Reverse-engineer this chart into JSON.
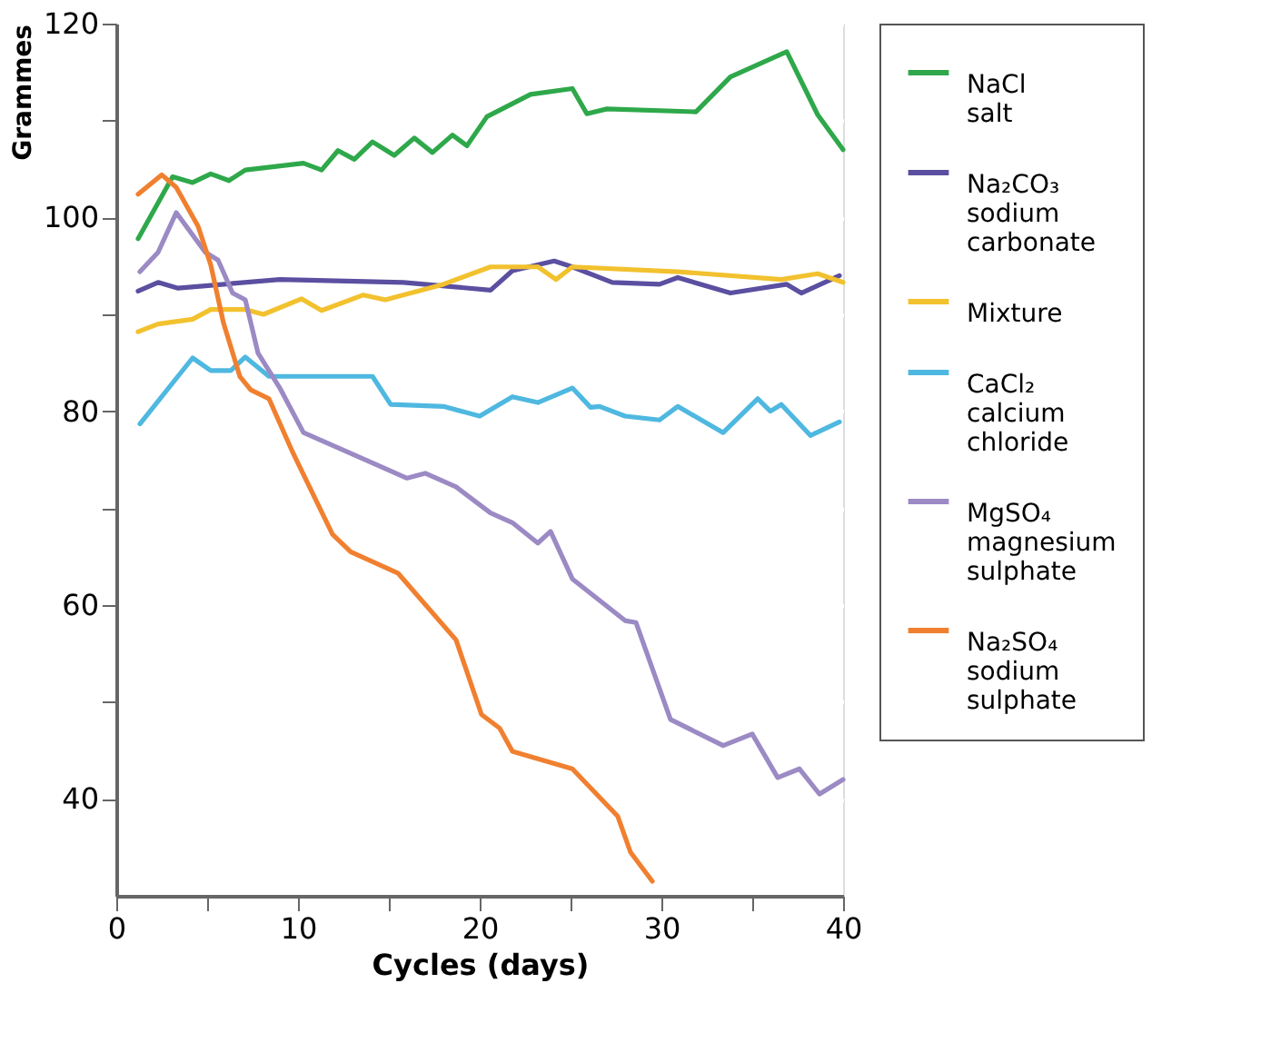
{
  "chart_data": {
    "type": "line",
    "xlabel": "Cycles (days)",
    "ylabel": "Grammes",
    "xlim": [
      0,
      40
    ],
    "ylim": [
      30,
      120
    ],
    "xticks": [
      0,
      {
        "value": 5,
        "label": null
      },
      10,
      {
        "value": 15,
        "label": null
      },
      20,
      {
        "value": 25,
        "label": null
      },
      30,
      {
        "value": 35,
        "label": null
      },
      40
    ],
    "yticks": [
      40,
      {
        "value": 50,
        "label": null
      },
      60,
      {
        "value": 70,
        "label": null
      },
      80,
      {
        "value": 90,
        "label": null
      },
      100,
      {
        "value": 110,
        "label": null
      },
      120
    ],
    "grid": "y",
    "legend": "right",
    "line_style": "solid",
    "marker": "none",
    "series": [
      {
        "name": "NaCl\nsalt",
        "color": "#2ea84a",
        "x": [
          1.2,
          3.1,
          4.2,
          5.2,
          6.2,
          7.1,
          10.3,
          11.3,
          12.2,
          13.1,
          14.1,
          15.3,
          16.4,
          17.4,
          18.5,
          19.3,
          20.4,
          22.8,
          25.1,
          25.9,
          27,
          31.9,
          33.8,
          36.9,
          38.6,
          40
        ],
        "values": [
          97.8,
          104.2,
          103.6,
          104.5,
          103.8,
          104.9,
          105.6,
          104.9,
          106.9,
          106,
          107.8,
          106.4,
          108.2,
          106.7,
          108.5,
          107.4,
          110.4,
          112.7,
          113.3,
          110.7,
          111.2,
          110.9,
          114.5,
          117.1,
          110.6,
          107
        ]
      },
      {
        "name": "Na₂CO₃\nsodium\ncarbonate",
        "color": "#5a4fa0",
        "x": [
          1.2,
          2.3,
          3.4,
          9,
          15.8,
          20.6,
          21.8,
          24.1,
          25.1,
          27.3,
          29.9,
          30.9,
          33.8,
          36.9,
          37.7,
          39.8
        ],
        "values": [
          92.4,
          93.3,
          92.7,
          93.6,
          93.3,
          92.5,
          94.5,
          95.5,
          94.9,
          93.3,
          93.1,
          93.8,
          92.2,
          93.1,
          92.2,
          94
        ]
      },
      {
        "name": "Mixture",
        "color": "#f2c12e",
        "x": [
          1.2,
          2.3,
          4.2,
          5.2,
          7.1,
          8.1,
          10.2,
          11.3,
          13.6,
          14.8,
          18,
          20.6,
          23.2,
          24.2,
          25.1,
          30.9,
          36.6,
          38.6,
          40
        ],
        "values": [
          88.2,
          89,
          89.5,
          90.5,
          90.5,
          90,
          91.6,
          90.4,
          92,
          91.5,
          93.1,
          94.9,
          94.9,
          93.6,
          94.9,
          94.4,
          93.6,
          94.2,
          93.3
        ]
      },
      {
        "name": "CaCl₂\ncalcium\nchloride",
        "color": "#4fb8e0",
        "x": [
          1.3,
          4.2,
          5.2,
          6.3,
          7.1,
          8.4,
          14.1,
          15.1,
          18,
          20,
          21.8,
          23.2,
          25.1,
          26.1,
          26.6,
          28,
          29.9,
          30.9,
          33.4,
          35.3,
          36,
          36.6,
          38.2,
          39.8
        ],
        "values": [
          78.7,
          85.5,
          84.2,
          84.2,
          85.6,
          83.6,
          83.6,
          80.7,
          80.5,
          79.5,
          81.5,
          80.9,
          82.4,
          80.4,
          80.5,
          79.5,
          79.1,
          80.5,
          77.8,
          81.3,
          80,
          80.7,
          77.5,
          78.9
        ]
      },
      {
        "name": "MgSO₄\nmagnesium\nsulphate",
        "color": "#9b8ac4",
        "x": [
          1.3,
          2.3,
          3.3,
          4.9,
          5.6,
          6.4,
          7.1,
          7.8,
          9,
          10.3,
          16,
          17,
          18.7,
          20.6,
          21.8,
          23.2,
          23.9,
          25.1,
          28,
          28.6,
          30.5,
          33.4,
          35,
          36.4,
          37.6,
          38.7,
          40
        ],
        "values": [
          94.4,
          96.4,
          100.5,
          96.4,
          95.6,
          92.2,
          91.5,
          86,
          82.4,
          77.8,
          73.1,
          73.6,
          72.2,
          69.5,
          68.5,
          66.4,
          67.6,
          62.7,
          58.4,
          58.2,
          48.2,
          45.5,
          46.7,
          42.2,
          43.1,
          40.5,
          42
        ]
      },
      {
        "name": "Na₂SO₄\nsodium\nsulphate",
        "color": "#f08030",
        "x": [
          1.2,
          2.5,
          3.3,
          4.5,
          5.2,
          5.9,
          6.8,
          7.4,
          8.4,
          9.7,
          11.9,
          12.9,
          15.5,
          18.7,
          20.1,
          21.1,
          21.8,
          25.1,
          27.6,
          28.3,
          29.5
        ],
        "values": [
          102.4,
          104.4,
          103.1,
          99.1,
          95.1,
          89.1,
          83.6,
          82.2,
          81.3,
          75.8,
          67.3,
          65.5,
          63.3,
          56.4,
          48.7,
          47.3,
          44.9,
          43.1,
          38.2,
          34.5,
          31.5
        ]
      }
    ]
  }
}
